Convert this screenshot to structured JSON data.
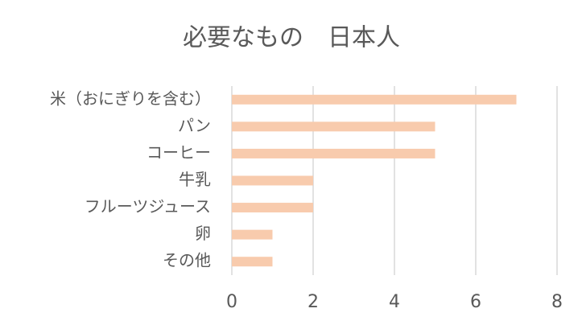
{
  "chart_data": {
    "type": "barh",
    "title": "必要なもの　日本人",
    "categories": [
      "米（おにぎりを含む）",
      "パン",
      "コーヒー",
      "牛乳",
      "フルーツジュース",
      "卵",
      "その他"
    ],
    "values": [
      7,
      5,
      5,
      2,
      2,
      1,
      1
    ],
    "color": "#f8cbad",
    "xlim": [
      0,
      8
    ],
    "xticks": [
      0,
      2,
      4,
      6,
      8
    ],
    "grid": true
  }
}
